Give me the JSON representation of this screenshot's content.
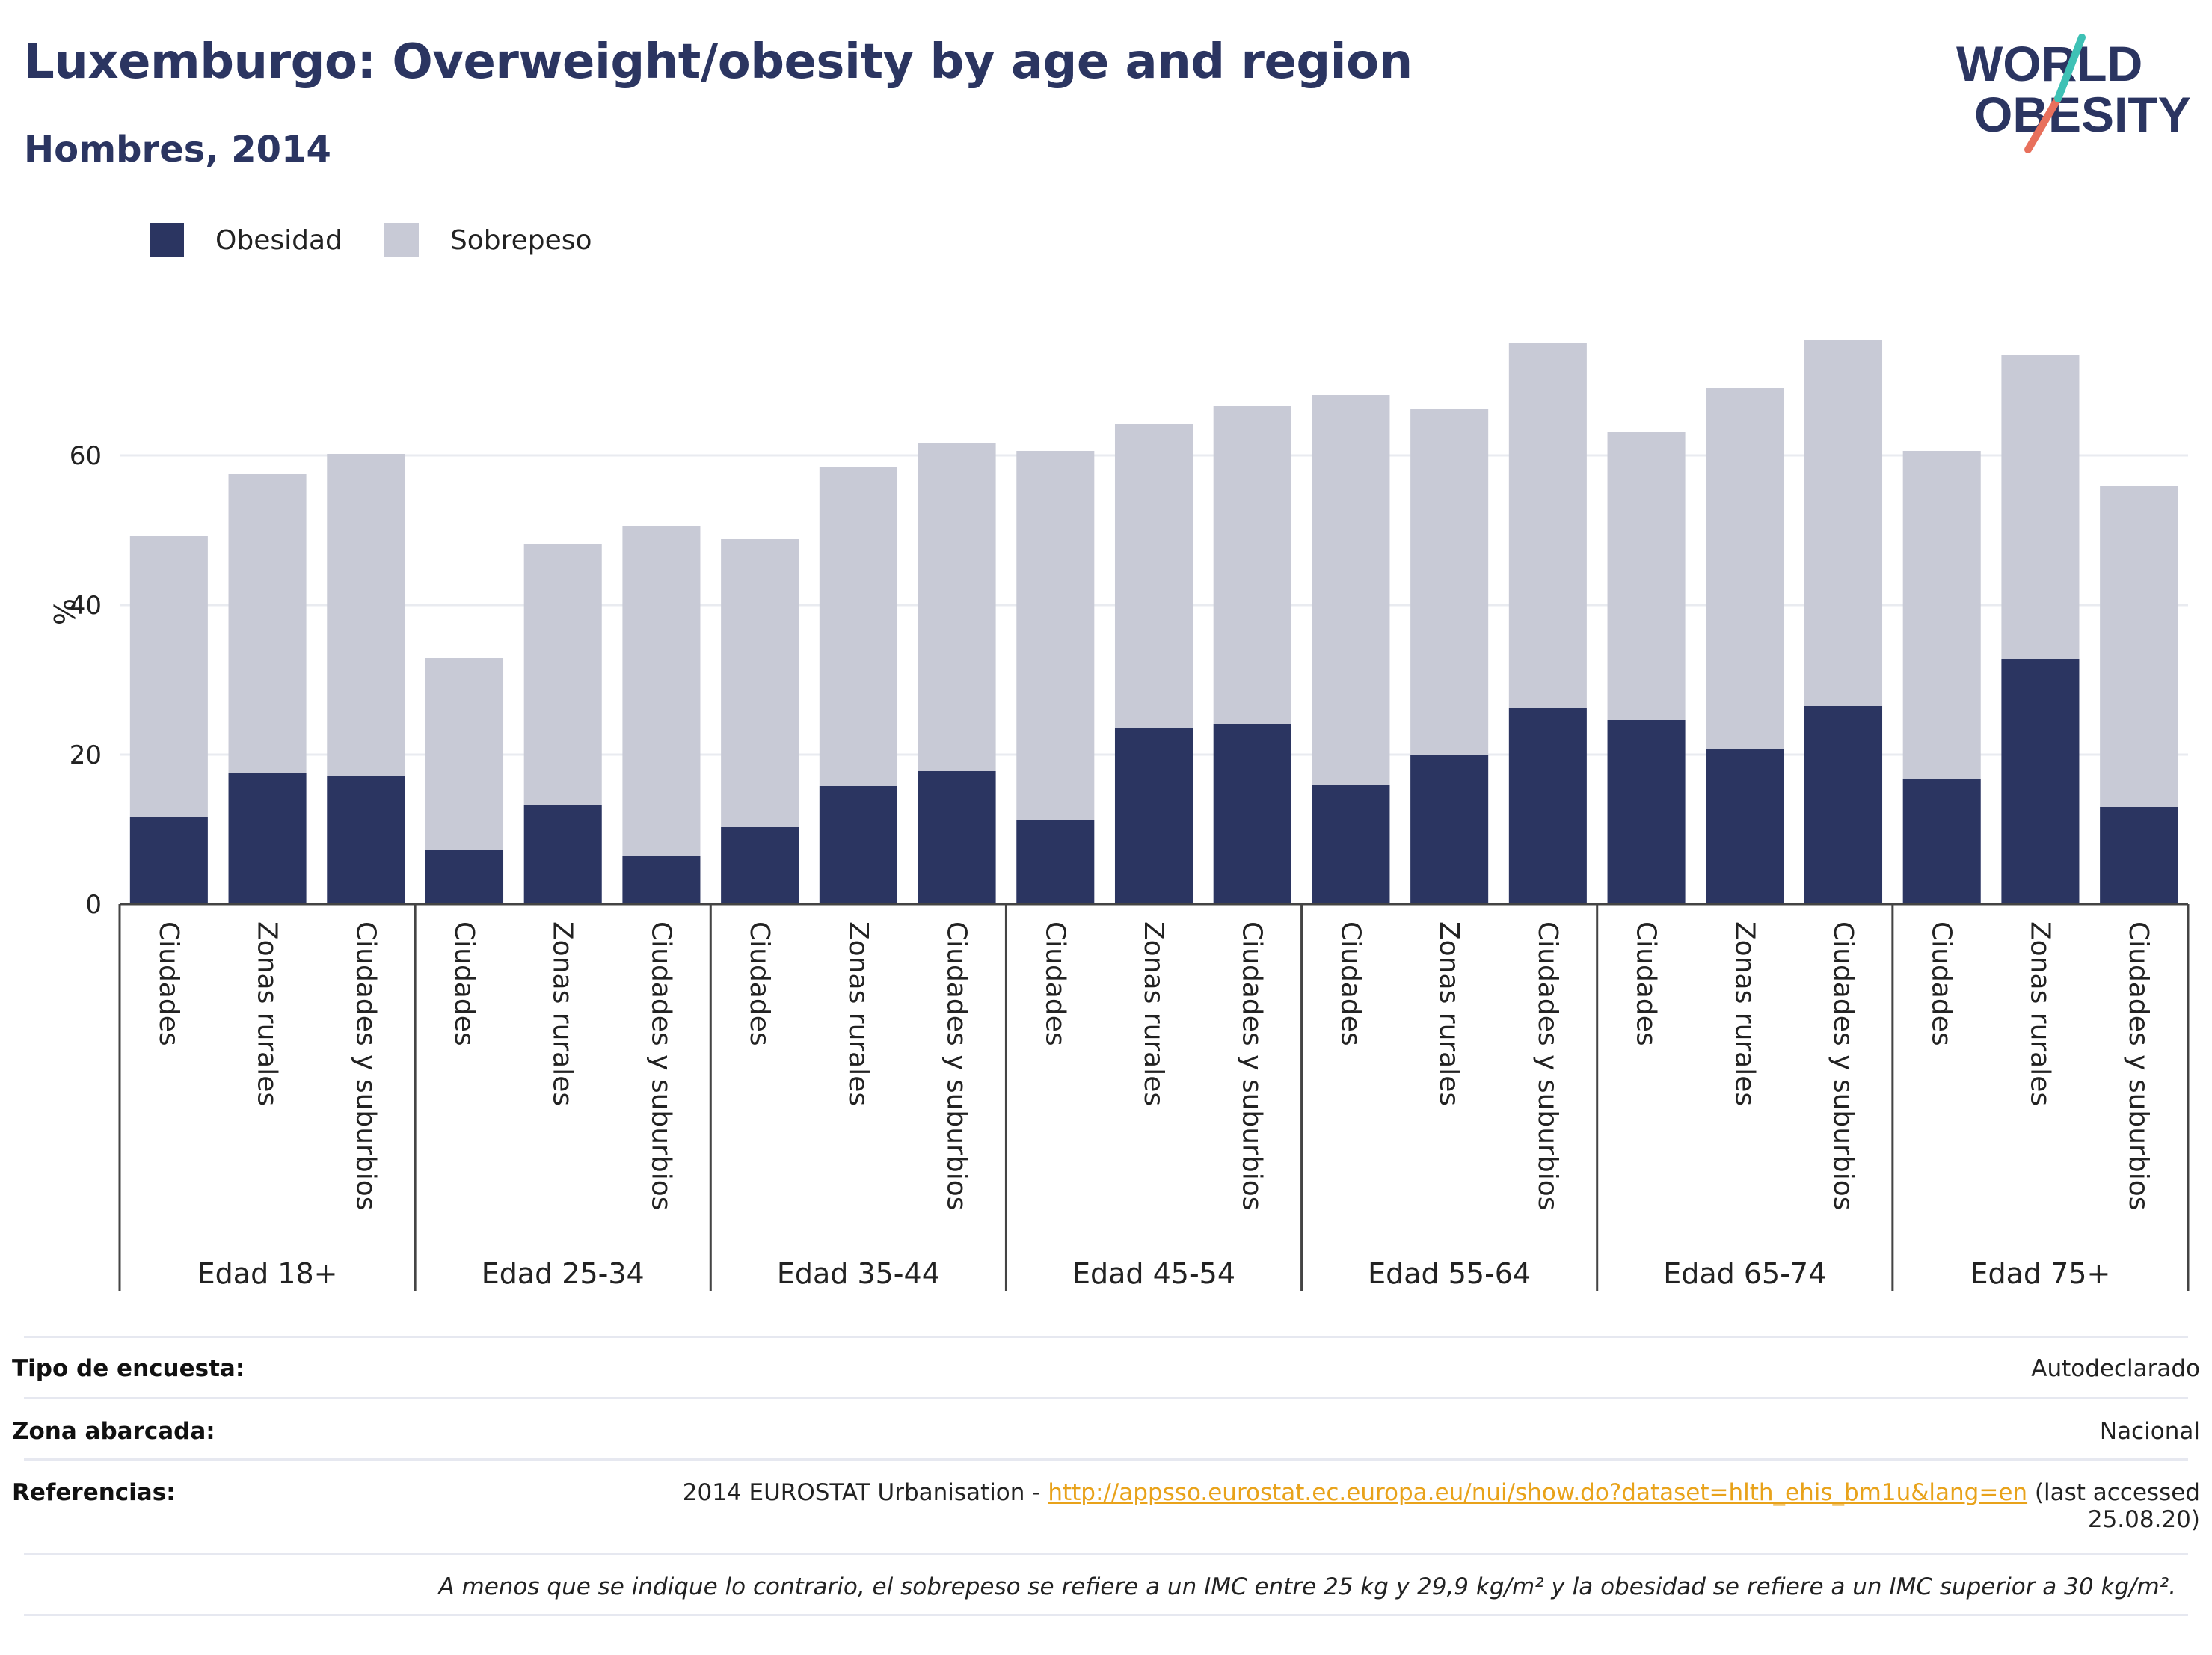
{
  "header": {
    "title": "Luxemburgo: Overweight/obesity by age and region",
    "subtitle": "Hombres, 2014"
  },
  "logo": {
    "line1": "WORLD",
    "line2": "OBESITY"
  },
  "legend": [
    {
      "label": "Obesidad",
      "color": "#2b3561"
    },
    {
      "label": "Sobrepeso",
      "color": "#c8cad6"
    }
  ],
  "chart_data": {
    "type": "bar",
    "stacked": true,
    "ylabel": "%",
    "ylim": [
      0,
      80
    ],
    "yticks": [
      0,
      20,
      40,
      60
    ],
    "grid": true,
    "legend_position": "top-left",
    "groups": [
      "Edad 18+",
      "Edad 25-34",
      "Edad 35-44",
      "Edad 45-54",
      "Edad 55-64",
      "Edad 65-74",
      "Edad 75+"
    ],
    "subcategories": [
      "Ciudades",
      "Zonas rurales",
      "Ciudades y suburbios"
    ],
    "series": [
      {
        "name": "Obesidad",
        "color": "#2b3561",
        "values": [
          11.6,
          17.6,
          17.2,
          7.3,
          13.2,
          6.4,
          10.3,
          15.8,
          17.8,
          11.3,
          23.5,
          24.1,
          15.9,
          20.0,
          26.2,
          24.6,
          20.7,
          26.5,
          16.7,
          32.8,
          13.0
        ]
      },
      {
        "name": "Sobrepeso",
        "color": "#c8cad6",
        "values": [
          37.6,
          39.9,
          43.0,
          25.6,
          35.0,
          44.1,
          38.5,
          42.7,
          43.8,
          49.3,
          40.7,
          42.5,
          52.2,
          46.2,
          48.9,
          38.5,
          48.3,
          48.9,
          43.9,
          40.6,
          42.9
        ]
      }
    ]
  },
  "info": {
    "survey_type": {
      "key": "Tipo de encuesta:",
      "value": "Autodeclarado"
    },
    "area": {
      "key": "Zona abarcada:",
      "value": "Nacional"
    },
    "references": {
      "key": "Referencias:",
      "prefix": "2014 EUROSTAT Urbanisation - ",
      "link": "http://appsso.eurostat.ec.europa.eu/nui/show.do?dataset=hlth_ehis_bm1u&lang=en",
      "suffix_line1": " (last accessed",
      "suffix_line2": "25.08.20)"
    },
    "note": "A menos que se indique lo contrario, el sobrepeso se refiere a un IMC entre 25 kg y 29,9 kg/m² y la obesidad se refiere a un IMC superior a 30 kg/m²."
  }
}
